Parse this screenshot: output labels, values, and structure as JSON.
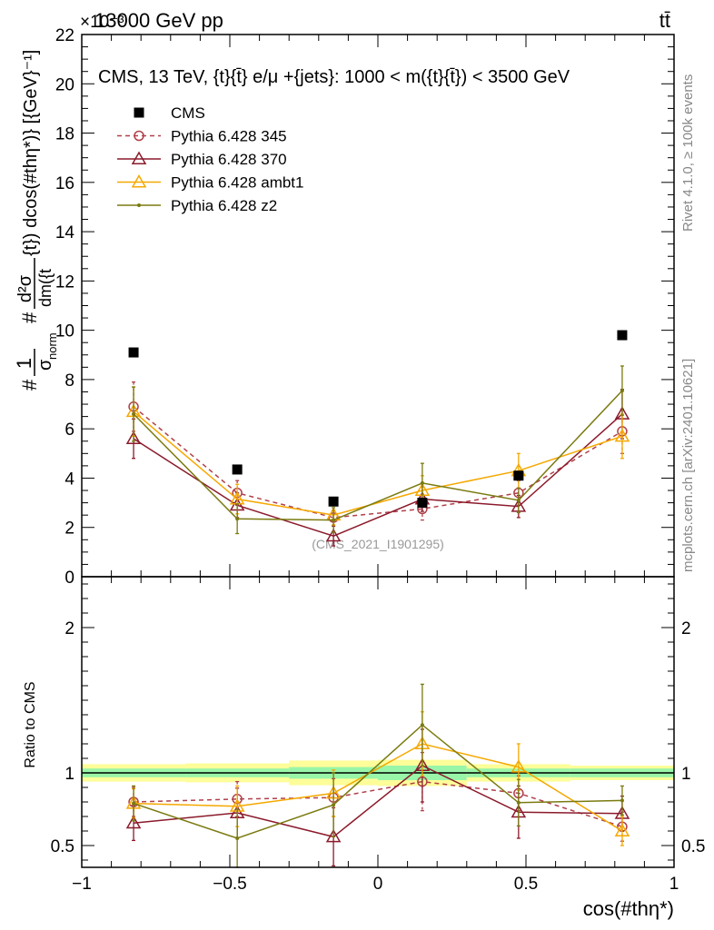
{
  "header": {
    "left": "13000 GeV pp",
    "right": "tt̄",
    "exponent": "×10⁻³"
  },
  "side_labels": {
    "rivet": "Rivet 4.1.0, ≥ 100k events",
    "mcplots": "mcplots.cern.ch [arXiv:2401.10621]"
  },
  "chart_data": [
    {
      "type": "scatter",
      "panel": "main",
      "title": "CMS, 13 TeV, {t}{t̄} e/μ +{jets}: 1000 < m({t}{t̄}) < 3500 GeV",
      "ylabel_prefix": "#",
      "ylabel_frac_num": "1",
      "ylabel_frac_den": "σ",
      "ylabel_frac_den_sub": "norm",
      "ylabel_mid": "#",
      "ylabel_d_num": "d²σ",
      "ylabel_d_den": "dm({t",
      "ylabel_rest": "{t}) dcos(#thη*)} [{GeV}⁻¹]",
      "xlabel": "cos(#thη*)",
      "watermark": "(CMS_2021_I1901295)",
      "xlim": [
        -1,
        1
      ],
      "ylim": [
        0,
        22
      ],
      "yticks": [
        0,
        2,
        4,
        6,
        8,
        10,
        12,
        14,
        16,
        18,
        20,
        22
      ],
      "x": [
        -0.825,
        -0.475,
        -0.15,
        0.15,
        0.475,
        0.825
      ],
      "series": [
        {
          "name": "CMS",
          "style": "data",
          "color": "#000000",
          "values": [
            9.1,
            4.35,
            3.05,
            3.0,
            4.1,
            9.8
          ],
          "errors": [
            0.15,
            0.1,
            0.1,
            0.1,
            0.1,
            0.2
          ]
        },
        {
          "name": "Pythia 6.428 345",
          "style": "circle-dashed",
          "color": "#b0404a",
          "values": [
            6.9,
            3.4,
            2.4,
            2.75,
            3.4,
            5.9
          ],
          "errors": [
            1.0,
            0.5,
            0.3,
            0.45,
            0.5,
            0.9
          ]
        },
        {
          "name": "Pythia 6.428 370",
          "style": "triangle",
          "color": "#8b1a2b",
          "values": [
            5.6,
            2.9,
            1.65,
            3.15,
            2.85,
            6.6
          ],
          "errors": [
            0.8,
            0.5,
            0.4,
            0.5,
            0.45,
            1.0
          ]
        },
        {
          "name": "Pythia 6.428 ambt1",
          "style": "triangle",
          "color": "#f5a800",
          "values": [
            6.7,
            3.15,
            2.5,
            3.5,
            4.3,
            5.7
          ],
          "errors": [
            1.0,
            0.6,
            0.4,
            0.6,
            0.7,
            0.9
          ]
        },
        {
          "name": "Pythia 6.428 z2",
          "style": "dot",
          "color": "#7a7a10",
          "values": [
            6.6,
            2.35,
            2.3,
            3.8,
            3.1,
            7.55
          ],
          "errors": [
            1.1,
            0.6,
            0.5,
            0.8,
            0.5,
            1.0
          ]
        }
      ]
    },
    {
      "type": "scatter",
      "panel": "ratio",
      "ylabel": "Ratio to CMS",
      "xlabel": "cos(#thη*)",
      "xlim": [
        -1,
        1
      ],
      "ylim": [
        0.35,
        2.35
      ],
      "yticks": [
        0.5,
        1,
        2
      ],
      "ytick_labels": [
        "0.5",
        "1",
        "2"
      ],
      "xticks": [
        -1,
        -0.5,
        0,
        0.5,
        1
      ],
      "xtick_labels": [
        "−1",
        "−0.5",
        "0",
        "0.5",
        "1"
      ],
      "x": [
        -0.825,
        -0.475,
        -0.15,
        0.15,
        0.475,
        0.825
      ],
      "bins": [
        [
          -1,
          -0.65
        ],
        [
          -0.65,
          -0.3
        ],
        [
          -0.3,
          0
        ],
        [
          0,
          0.3
        ],
        [
          0.3,
          0.65
        ],
        [
          0.65,
          1
        ]
      ],
      "band_inner": [
        0.03,
        0.03,
        0.04,
        0.05,
        0.03,
        0.03
      ],
      "band_outer": [
        0.06,
        0.065,
        0.085,
        0.09,
        0.06,
        0.05
      ],
      "series": [
        {
          "name": "Pythia 6.428 345",
          "style": "circle-dashed",
          "color": "#b0404a",
          "values": [
            0.8,
            0.82,
            0.83,
            0.94,
            0.86,
            0.63
          ],
          "errors": [
            0.1,
            0.12,
            0.13,
            0.2,
            0.12,
            0.1
          ]
        },
        {
          "name": "Pythia 6.428 370",
          "style": "triangle",
          "color": "#8b1a2b",
          "values": [
            0.655,
            0.725,
            0.56,
            1.05,
            0.73,
            0.72
          ],
          "errors": [
            0.12,
            0.17,
            0.2,
            0.25,
            0.18,
            0.12
          ]
        },
        {
          "name": "Pythia 6.428 ambt1",
          "style": "triangle",
          "color": "#f5a800",
          "values": [
            0.79,
            0.77,
            0.86,
            1.2,
            1.04,
            0.6
          ],
          "errors": [
            0.1,
            0.14,
            0.16,
            0.22,
            0.16,
            0.1
          ]
        },
        {
          "name": "Pythia 6.428 z2",
          "style": "dot",
          "color": "#7a7a10",
          "values": [
            0.79,
            0.55,
            0.78,
            1.33,
            0.795,
            0.81
          ],
          "errors": [
            0.12,
            0.2,
            0.22,
            0.28,
            0.16,
            0.1
          ]
        }
      ]
    }
  ]
}
